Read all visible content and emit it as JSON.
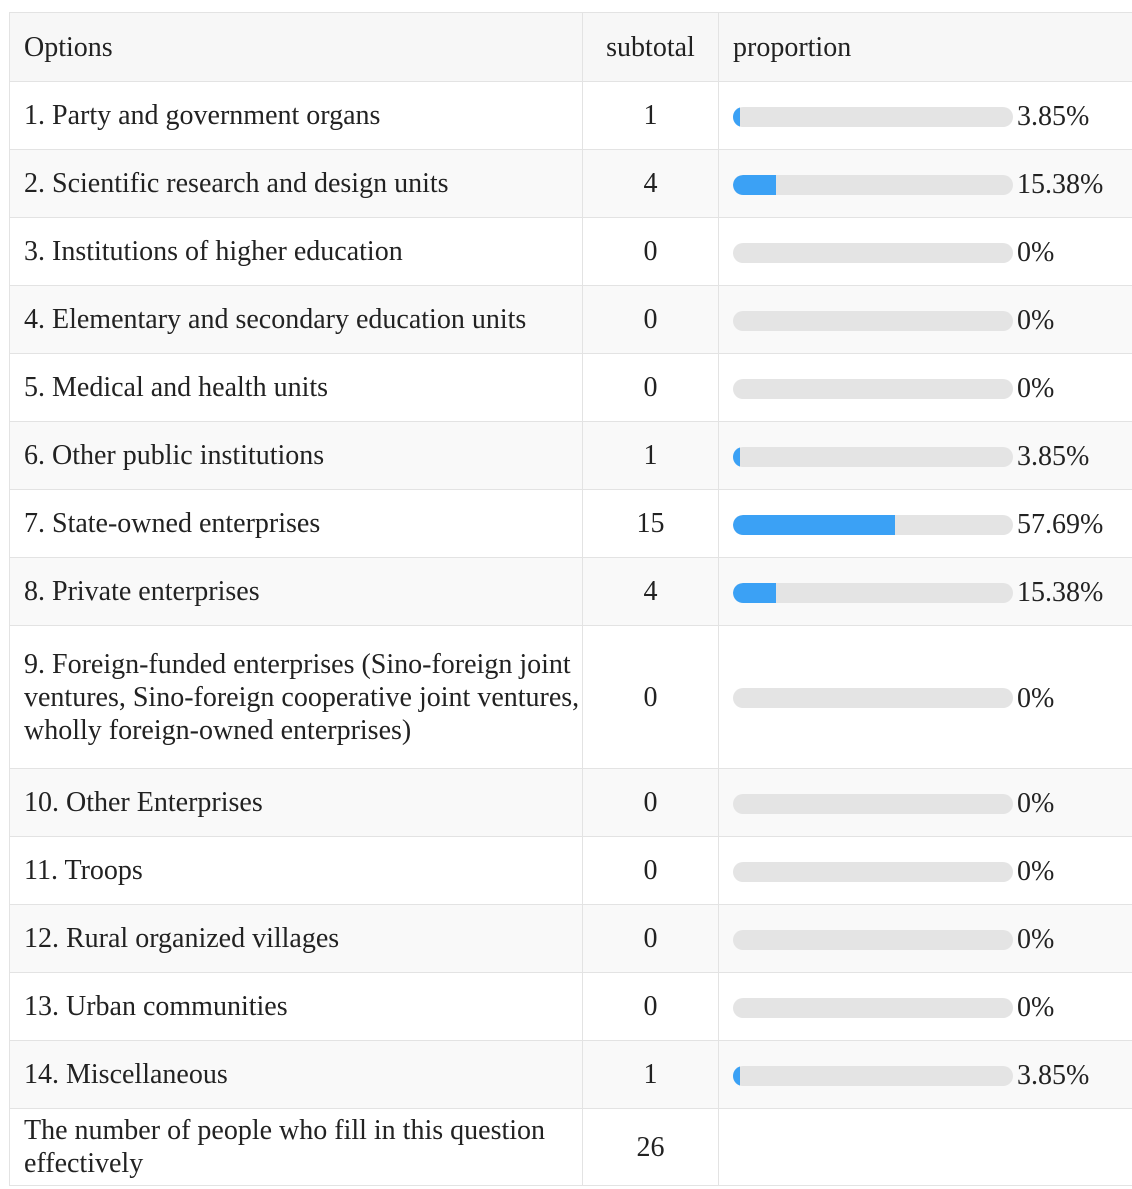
{
  "table": {
    "headers": {
      "options": "Options",
      "subtotal": "subtotal",
      "proportion": "proportion"
    },
    "bar_color": "#3ba1f5",
    "rows": [
      {
        "option": "1. Party and government organs",
        "subtotal": "1",
        "proportion": "3.85%",
        "fraction": 0.0385
      },
      {
        "option": "2. Scientific research and design units",
        "subtotal": "4",
        "proportion": "15.38%",
        "fraction": 0.1538
      },
      {
        "option": "3. Institutions of higher education",
        "subtotal": "0",
        "proportion": "0%",
        "fraction": 0
      },
      {
        "option": "4. Elementary and secondary education units",
        "subtotal": "0",
        "proportion": "0%",
        "fraction": 0
      },
      {
        "option": "5. Medical and health units",
        "subtotal": "0",
        "proportion": "0%",
        "fraction": 0
      },
      {
        "option": "6. Other public institutions",
        "subtotal": "1",
        "proportion": "3.85%",
        "fraction": 0.0385
      },
      {
        "option": "7. State-owned enterprises",
        "subtotal": "15",
        "proportion": "57.69%",
        "fraction": 0.5769
      },
      {
        "option": "8. Private enterprises",
        "subtotal": "4",
        "proportion": "15.38%",
        "fraction": 0.1538
      },
      {
        "option": "9. Foreign-funded enterprises (Sino-foreign joint ventures, Sino-foreign cooperative joint ventures, wholly foreign-owned enterprises)",
        "subtotal": "0",
        "proportion": "0%",
        "fraction": 0
      },
      {
        "option": "10. Other Enterprises",
        "subtotal": "0",
        "proportion": "0%",
        "fraction": 0
      },
      {
        "option": "11. Troops",
        "subtotal": "0",
        "proportion": "0%",
        "fraction": 0
      },
      {
        "option": "12. Rural organized villages",
        "subtotal": "0",
        "proportion": "0%",
        "fraction": 0
      },
      {
        "option": "13. Urban communities",
        "subtotal": "0",
        "proportion": "0%",
        "fraction": 0
      },
      {
        "option": "14. Miscellaneous",
        "subtotal": "1",
        "proportion": "3.85%",
        "fraction": 0.0385
      }
    ],
    "footer": {
      "label": "The number of people who fill in this question effectively",
      "total": "26"
    }
  }
}
